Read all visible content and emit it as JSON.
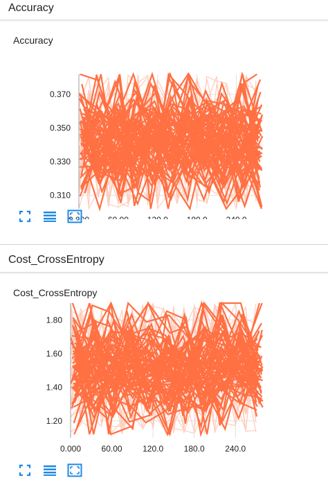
{
  "sections": [
    {
      "header": "Accuracy",
      "card_title": "Accuracy"
    },
    {
      "header": "Cost_CrossEntropy",
      "card_title": "Cost_CrossEntropy"
    }
  ],
  "colors": {
    "series": "#ff7043",
    "series_faint": "#ffccbc",
    "icon": "#1e88e5"
  },
  "toolbar_icons": [
    "expand-icon",
    "list-icon",
    "fit-domain-icon"
  ],
  "chart_data": [
    {
      "type": "line",
      "title": "Accuracy",
      "xlabel": "",
      "ylabel": "",
      "x_ticks": [
        "0.000",
        "60.00",
        "120.0",
        "180.0",
        "240.0"
      ],
      "y_ticks": [
        "0.310",
        "0.330",
        "0.350",
        "0.370"
      ],
      "xlim": [
        0,
        270
      ],
      "ylim": [
        0.302,
        0.382
      ],
      "grid": true,
      "series": [
        {
          "x": [
            0,
            270
          ],
          "y_range": [
            0.302,
            0.382
          ],
          "note_free": true
        }
      ]
    },
    {
      "type": "line",
      "title": "Cost_CrossEntropy",
      "xlabel": "",
      "ylabel": "",
      "x_ticks": [
        "0.000",
        "60.00",
        "120.0",
        "180.0",
        "240.0"
      ],
      "y_ticks": [
        "1.20",
        "1.40",
        "1.60",
        "1.80"
      ],
      "xlim": [
        0,
        270
      ],
      "ylim": [
        1.1,
        1.9
      ],
      "grid": true,
      "series": [
        {
          "x": [
            0,
            270
          ],
          "y_range": [
            1.12,
            1.9
          ]
        }
      ]
    }
  ]
}
